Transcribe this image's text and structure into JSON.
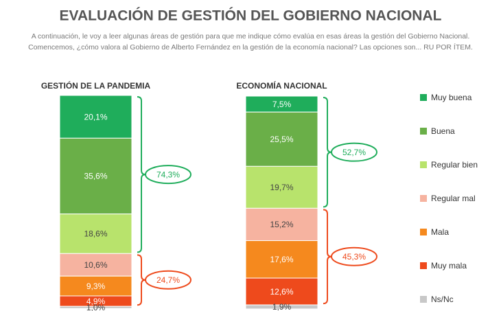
{
  "chart_data": {
    "type": "stacked-bar",
    "title": "EVALUACIÓN DE GESTIÓN DEL GOBIERNO NACIONAL",
    "subtitle": [
      "A continuación, le voy a leer algunas áreas de gestión para que me indique cómo evalúa en esas áreas la gestión del Gobierno Nacional.",
      "Comencemos, ¿cómo valora al Gobierno de Alberto Fernández en la gestión de la economía nacional? Las opciones son... RU POR ÍTEM."
    ],
    "categories": [
      "GESTIÓN DE LA PANDEMIA",
      "ECONOMÍA NACIONAL"
    ],
    "series": [
      {
        "name": "Muy buena",
        "color": "#1fad5b",
        "values": [
          20.1,
          7.5
        ],
        "value_labels": [
          "20,1%",
          "7,5%"
        ]
      },
      {
        "name": "Buena",
        "color": "#6aaf48",
        "values": [
          35.6,
          25.5
        ],
        "value_labels": [
          "35,6%",
          "25,5%"
        ]
      },
      {
        "name": "Regular bien",
        "color": "#b8e36c",
        "values": [
          18.6,
          19.7
        ],
        "value_labels": [
          "18,6%",
          "19,7%"
        ]
      },
      {
        "name": "Regular mal",
        "color": "#f6b3a0",
        "values": [
          10.6,
          15.2
        ],
        "value_labels": [
          "10,6%",
          "15,2%"
        ]
      },
      {
        "name": "Mala",
        "color": "#f5891e",
        "values": [
          9.3,
          17.6
        ],
        "value_labels": [
          "9,3%",
          "17,6%"
        ]
      },
      {
        "name": "Muy mala",
        "color": "#ee4a1c",
        "values": [
          4.9,
          12.6
        ],
        "value_labels": [
          "4,9%",
          "12,6%"
        ]
      },
      {
        "name": "Ns/Nc",
        "color": "#c8c8c8",
        "values": [
          1.0,
          1.9
        ],
        "value_labels": [
          "1,0%",
          "1,9%"
        ]
      }
    ],
    "annotations": [
      {
        "value": 74.3,
        "label": "74,3%",
        "category": "GESTIÓN DE LA PANDEMIA",
        "segments": [
          "Muy buena",
          "Buena",
          "Regular bien"
        ],
        "color": "#1fad5b"
      },
      {
        "value": 24.7,
        "label": "24,7%",
        "category": "GESTIÓN DE LA PANDEMIA",
        "segments": [
          "Regular mal",
          "Mala",
          "Muy mala"
        ],
        "color": "#ee4a1c"
      },
      {
        "value": 52.7,
        "label": "52,7%",
        "category": "ECONOMÍA NACIONAL",
        "segments": [
          "Muy buena",
          "Buena",
          "Regular bien"
        ],
        "color": "#1fad5b"
      },
      {
        "value": 45.3,
        "label": "45,3%",
        "category": "ECONOMÍA NACIONAL",
        "segments": [
          "Regular mal",
          "Mala",
          "Muy mala"
        ],
        "color": "#ee4a1c"
      }
    ]
  }
}
